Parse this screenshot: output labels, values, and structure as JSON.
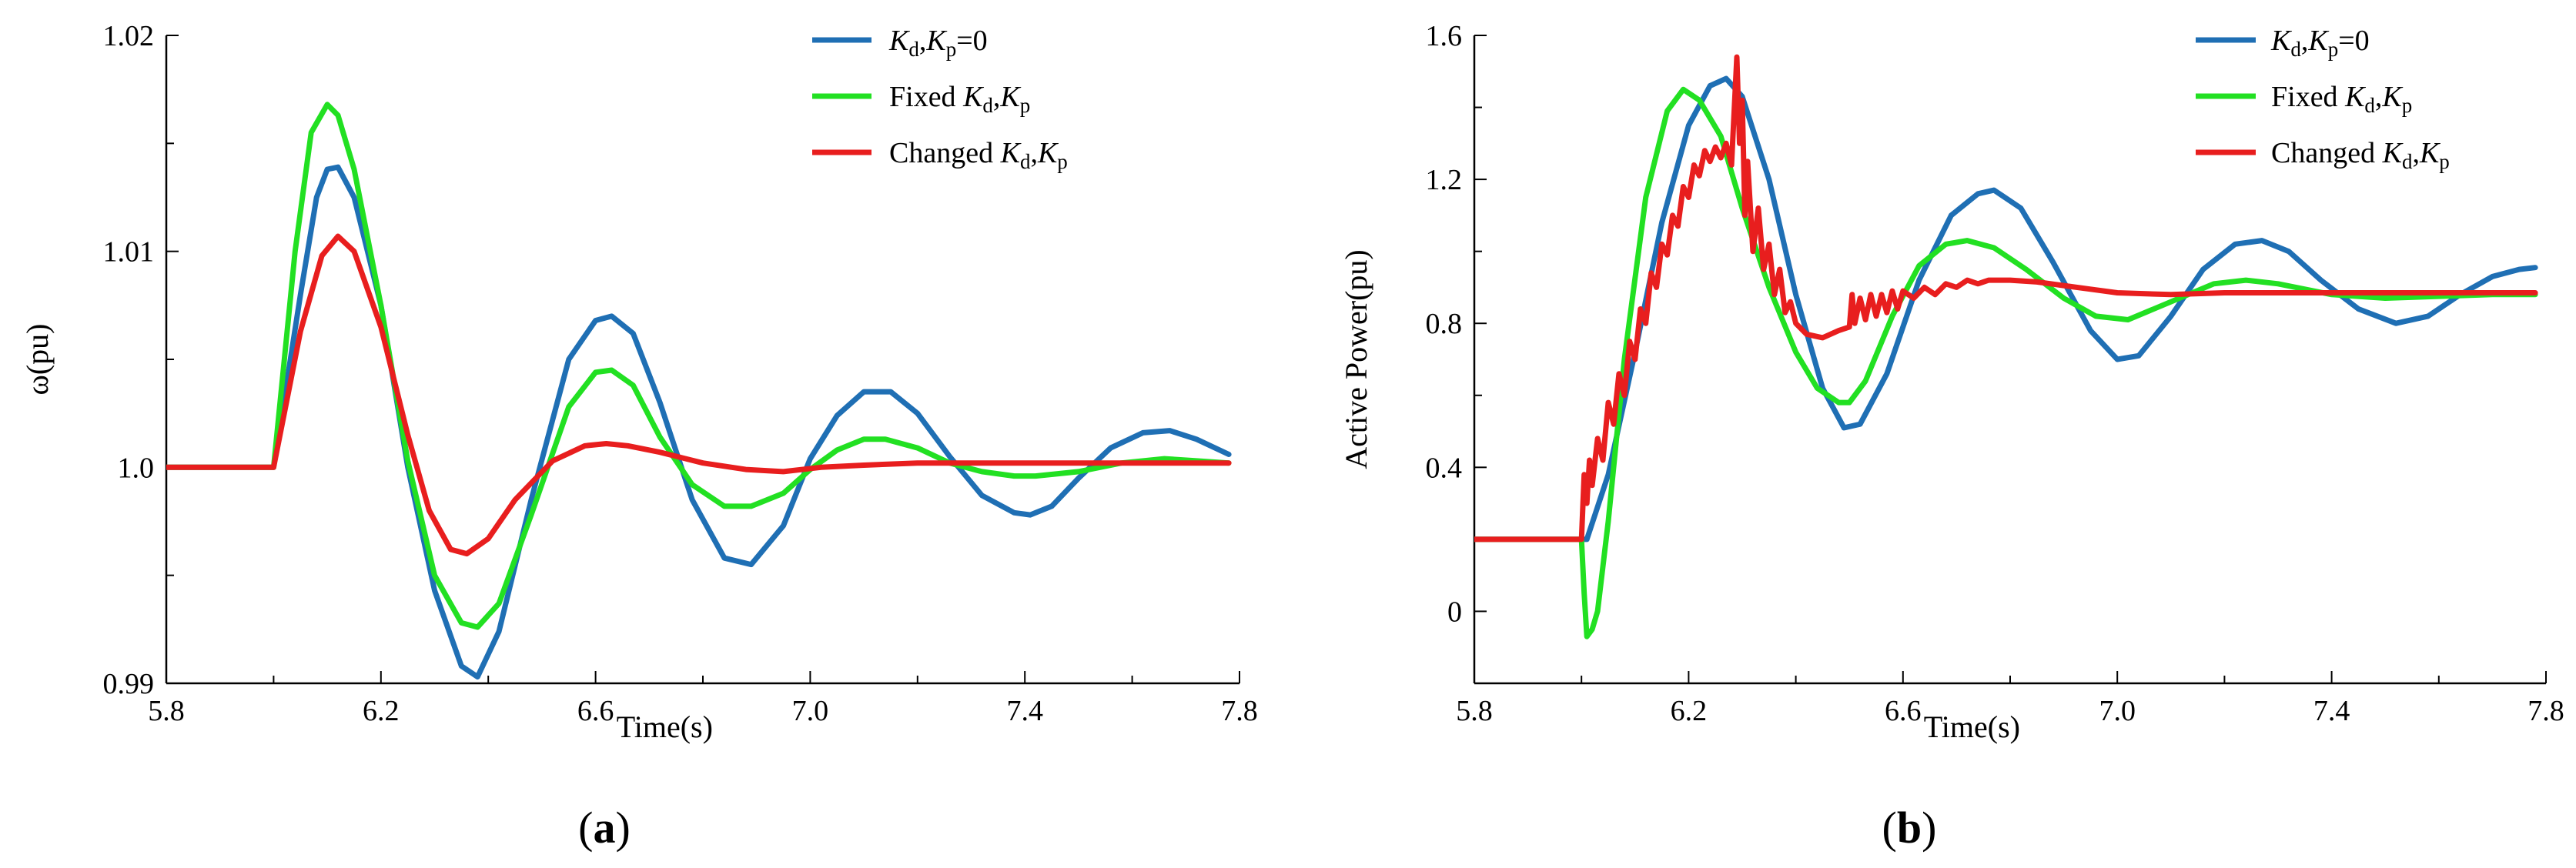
{
  "chart_data": [
    {
      "type": "line",
      "panel_label": "(a)",
      "panel_letter": "a",
      "xlabel": "Time(s)",
      "ylabel": "ω(pu)",
      "xlim": [
        5.8,
        7.8
      ],
      "ylim": [
        0.99,
        1.02
      ],
      "xticks": [
        5.8,
        6.2,
        6.6,
        7.0,
        7.4,
        7.8
      ],
      "xtick_labels": [
        "5.8",
        "6.2",
        "6.6",
        "7.0",
        "7.4",
        "7.8"
      ],
      "yticks": [
        0.99,
        1.0,
        1.01,
        1.02
      ],
      "ytick_labels": [
        "0.99",
        "1.0",
        "1.01",
        "1.02"
      ],
      "legend_position": "top-right",
      "series": [
        {
          "name": "Kd,Kp=0",
          "legend": {
            "k1": "K",
            "s1": "d",
            "sep": ",",
            "k2": "K",
            "s2": "p",
            "suffix": "=0",
            "prefix": ""
          },
          "color": "#1f6fb4",
          "x": [
            5.8,
            5.99,
            6.0,
            6.05,
            6.08,
            6.1,
            6.12,
            6.15,
            6.2,
            6.25,
            6.3,
            6.35,
            6.38,
            6.42,
            6.48,
            6.55,
            6.6,
            6.63,
            6.67,
            6.72,
            6.78,
            6.84,
            6.89,
            6.95,
            7.0,
            7.05,
            7.1,
            7.15,
            7.2,
            7.26,
            7.32,
            7.38,
            7.41,
            7.45,
            7.5,
            7.56,
            7.62,
            7.67,
            7.72,
            7.78
          ],
          "y": [
            1.0,
            1.0,
            1.0,
            1.008,
            1.0125,
            1.0138,
            1.0139,
            1.0125,
            1.0075,
            1.0,
            0.9943,
            0.9908,
            0.9903,
            0.9924,
            0.9985,
            1.005,
            1.0068,
            1.007,
            1.0062,
            1.003,
            0.9985,
            0.9958,
            0.9955,
            0.9973,
            1.0004,
            1.0024,
            1.0035,
            1.0035,
            1.0025,
            1.0005,
            0.9987,
            0.9979,
            0.9978,
            0.9982,
            0.9995,
            1.0009,
            1.0016,
            1.0017,
            1.0013,
            1.0006
          ]
        },
        {
          "name": "Fixed Kd,Kp",
          "legend": {
            "prefix": "Fixed ",
            "k1": "K",
            "s1": "d",
            "sep": ",",
            "k2": "K",
            "s2": "p",
            "suffix": ""
          },
          "color": "#22e022",
          "x": [
            5.8,
            5.99,
            6.0,
            6.04,
            6.07,
            6.1,
            6.12,
            6.15,
            6.2,
            6.25,
            6.3,
            6.35,
            6.38,
            6.42,
            6.48,
            6.55,
            6.6,
            6.63,
            6.67,
            6.72,
            6.78,
            6.84,
            6.89,
            6.95,
            7.0,
            7.05,
            7.1,
            7.14,
            7.2,
            7.26,
            7.32,
            7.38,
            7.42,
            7.5,
            7.58,
            7.66,
            7.72,
            7.78
          ],
          "y": [
            1.0,
            1.0,
            1.0,
            1.01,
            1.0155,
            1.0168,
            1.0163,
            1.0138,
            1.0075,
            1.0003,
            0.995,
            0.9928,
            0.9926,
            0.9937,
            0.9978,
            1.0028,
            1.0044,
            1.0045,
            1.0038,
            1.0014,
            0.9992,
            0.9982,
            0.9982,
            0.9988,
            0.9999,
            1.0008,
            1.0013,
            1.0013,
            1.0009,
            1.0002,
            0.9998,
            0.9996,
            0.9996,
            0.9998,
            1.0002,
            1.0004,
            1.0003,
            1.0002
          ]
        },
        {
          "name": "Changed Kd,Kp",
          "legend": {
            "prefix": "Changed  ",
            "k1": "K",
            "s1": "d",
            "sep": ",",
            "k2": "K",
            "s2": "p",
            "suffix": ""
          },
          "color": "#e81e1e",
          "x": [
            5.8,
            5.99,
            6.0,
            6.05,
            6.09,
            6.12,
            6.15,
            6.2,
            6.25,
            6.29,
            6.33,
            6.36,
            6.4,
            6.45,
            6.52,
            6.58,
            6.62,
            6.66,
            6.72,
            6.8,
            6.88,
            6.95,
            7.02,
            7.1,
            7.2,
            7.3,
            7.4,
            7.5,
            7.6,
            7.7,
            7.78
          ],
          "y": [
            1.0,
            1.0,
            1.0,
            1.0063,
            1.0098,
            1.0107,
            1.01,
            1.0065,
            1.0015,
            0.998,
            0.9962,
            0.996,
            0.9967,
            0.9985,
            1.0003,
            1.001,
            1.0011,
            1.001,
            1.0007,
            1.0002,
            0.9999,
            0.9998,
            1.0,
            1.0001,
            1.0002,
            1.0002,
            1.0002,
            1.0002,
            1.0002,
            1.0002,
            1.0002
          ]
        }
      ]
    },
    {
      "type": "line",
      "panel_label": "(b)",
      "panel_letter": "b",
      "xlabel": "Time(s)",
      "ylabel": "Active Power(pu)",
      "xlim": [
        5.8,
        7.8
      ],
      "ylim": [
        -0.2,
        1.6
      ],
      "xticks": [
        5.8,
        6.2,
        6.6,
        7.0,
        7.4,
        7.8
      ],
      "xtick_labels": [
        "5.8",
        "6.2",
        "6.6",
        "7.0",
        "7.4",
        "7.8"
      ],
      "yticks": [
        0.0,
        0.4,
        0.8,
        1.2,
        1.6
      ],
      "ytick_labels": [
        "0",
        "0.4",
        "0.8",
        "1.2",
        "1.6"
      ],
      "legend_position": "top-right",
      "series": [
        {
          "name": "Kd,Kp=0",
          "legend": {
            "k1": "K",
            "s1": "d",
            "sep": ",",
            "k2": "K",
            "s2": "p",
            "suffix": "=0",
            "prefix": ""
          },
          "color": "#1f6fb4",
          "x": [
            5.8,
            6.0,
            6.01,
            6.05,
            6.1,
            6.15,
            6.2,
            6.24,
            6.27,
            6.3,
            6.35,
            6.4,
            6.45,
            6.49,
            6.52,
            6.57,
            6.63,
            6.69,
            6.74,
            6.77,
            6.82,
            6.88,
            6.95,
            7.0,
            7.04,
            7.1,
            7.16,
            7.22,
            7.27,
            7.32,
            7.38,
            7.45,
            7.52,
            7.58,
            7.64,
            7.7,
            7.75,
            7.78
          ],
          "y": [
            0.2,
            0.2,
            0.2,
            0.38,
            0.72,
            1.08,
            1.35,
            1.46,
            1.48,
            1.43,
            1.2,
            0.88,
            0.62,
            0.51,
            0.52,
            0.66,
            0.92,
            1.1,
            1.16,
            1.17,
            1.12,
            0.97,
            0.78,
            0.7,
            0.71,
            0.82,
            0.95,
            1.02,
            1.03,
            1.0,
            0.92,
            0.84,
            0.8,
            0.82,
            0.88,
            0.93,
            0.95,
            0.955
          ]
        },
        {
          "name": "Fixed Kd,Kp",
          "legend": {
            "prefix": "Fixed ",
            "k1": "K",
            "s1": "d",
            "sep": ",",
            "k2": "K",
            "s2": "p",
            "suffix": ""
          },
          "color": "#22e022",
          "x": [
            5.8,
            6.0,
            6.005,
            6.01,
            6.02,
            6.03,
            6.05,
            6.08,
            6.12,
            6.16,
            6.19,
            6.22,
            6.26,
            6.3,
            6.35,
            6.4,
            6.44,
            6.48,
            6.5,
            6.53,
            6.58,
            6.63,
            6.68,
            6.72,
            6.77,
            6.83,
            6.9,
            6.96,
            7.02,
            7.1,
            7.18,
            7.24,
            7.3,
            7.4,
            7.5,
            7.6,
            7.7,
            7.78
          ],
          "y": [
            0.2,
            0.2,
            0.05,
            -0.07,
            -0.05,
            0.0,
            0.25,
            0.7,
            1.15,
            1.39,
            1.45,
            1.42,
            1.32,
            1.12,
            0.9,
            0.72,
            0.62,
            0.58,
            0.58,
            0.64,
            0.82,
            0.96,
            1.02,
            1.03,
            1.01,
            0.95,
            0.87,
            0.82,
            0.81,
            0.86,
            0.91,
            0.92,
            0.91,
            0.88,
            0.87,
            0.875,
            0.88,
            0.88
          ]
        },
        {
          "name": "Changed Kd,Kp",
          "legend": {
            "prefix": "Changed  ",
            "k1": "K",
            "s1": "d",
            "sep": ",",
            "k2": "K",
            "s2": "p",
            "suffix": ""
          },
          "color": "#e81e1e",
          "x": [
            5.8,
            6.0,
            6.005,
            6.01,
            6.015,
            6.02,
            6.03,
            6.04,
            6.05,
            6.06,
            6.07,
            6.08,
            6.09,
            6.1,
            6.11,
            6.12,
            6.13,
            6.14,
            6.15,
            6.16,
            6.17,
            6.18,
            6.19,
            6.2,
            6.21,
            6.22,
            6.23,
            6.24,
            6.25,
            6.26,
            6.27,
            6.28,
            6.29,
            6.295,
            6.3,
            6.305,
            6.31,
            6.32,
            6.33,
            6.34,
            6.35,
            6.36,
            6.37,
            6.38,
            6.39,
            6.4,
            6.42,
            6.45,
            6.48,
            6.5,
            6.505,
            6.51,
            6.52,
            6.53,
            6.54,
            6.55,
            6.56,
            6.57,
            6.58,
            6.59,
            6.6,
            6.62,
            6.64,
            6.66,
            6.68,
            6.7,
            6.72,
            6.74,
            6.76,
            6.8,
            6.85,
            6.9,
            6.95,
            7.0,
            7.1,
            7.2,
            7.3,
            7.4,
            7.5,
            7.6,
            7.7,
            7.78
          ],
          "y": [
            0.2,
            0.2,
            0.38,
            0.3,
            0.42,
            0.35,
            0.48,
            0.42,
            0.58,
            0.52,
            0.66,
            0.6,
            0.75,
            0.7,
            0.84,
            0.8,
            0.94,
            0.9,
            1.02,
            0.99,
            1.1,
            1.07,
            1.18,
            1.15,
            1.24,
            1.21,
            1.28,
            1.25,
            1.29,
            1.26,
            1.3,
            1.24,
            1.54,
            1.3,
            1.42,
            1.1,
            1.25,
            1.0,
            1.12,
            0.95,
            1.02,
            0.88,
            0.95,
            0.83,
            0.86,
            0.8,
            0.77,
            0.76,
            0.78,
            0.79,
            0.88,
            0.8,
            0.87,
            0.81,
            0.88,
            0.82,
            0.88,
            0.83,
            0.89,
            0.84,
            0.89,
            0.87,
            0.9,
            0.88,
            0.91,
            0.9,
            0.92,
            0.91,
            0.92,
            0.92,
            0.915,
            0.905,
            0.895,
            0.885,
            0.88,
            0.885,
            0.885,
            0.885,
            0.885,
            0.885,
            0.885,
            0.885
          ]
        }
      ]
    }
  ]
}
